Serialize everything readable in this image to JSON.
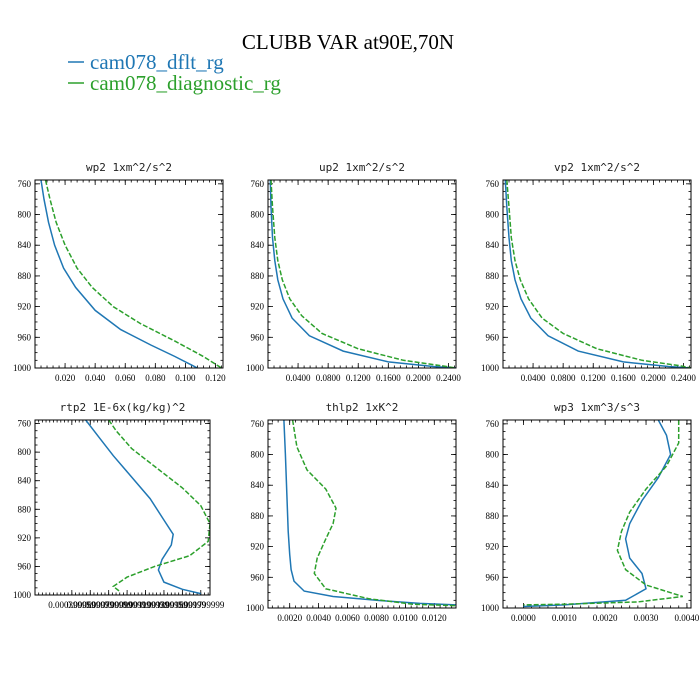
{
  "figure": {
    "title": "CLUBB VAR at90E,70N"
  },
  "legend": [
    {
      "label": "cam078_dflt_rg",
      "color": "#1f77b4"
    },
    {
      "label": "cam078_diagnostic_rg",
      "color": "#2ca02c"
    }
  ],
  "chart_data": [
    {
      "type": "line",
      "title": "wp2   1xm^2/s^2",
      "ylim": [
        1000,
        755
      ],
      "yticks": [
        760,
        800,
        840,
        880,
        920,
        960,
        1000
      ],
      "xlim": [
        0.0,
        0.125
      ],
      "xticks": [
        0.02,
        0.04,
        0.06,
        0.08,
        0.1,
        0.12
      ],
      "xtick_labels": [
        "0.020",
        "0.040",
        "0.060",
        "0.080",
        "0.100",
        "0.120"
      ],
      "series": [
        {
          "name": "cam078_dflt_rg",
          "points": [
            [
              0.004,
              755
            ],
            [
              0.006,
              780
            ],
            [
              0.009,
              810
            ],
            [
              0.013,
              840
            ],
            [
              0.019,
              870
            ],
            [
              0.027,
              895
            ],
            [
              0.04,
              925
            ],
            [
              0.057,
              950
            ],
            [
              0.077,
              970
            ],
            [
              0.093,
              985
            ],
            [
              0.104,
              996
            ],
            [
              0.108,
              1000
            ]
          ]
        },
        {
          "name": "cam078_diagnostic_rg",
          "points": [
            [
              0.007,
              755
            ],
            [
              0.01,
              780
            ],
            [
              0.014,
              810
            ],
            [
              0.02,
              840
            ],
            [
              0.028,
              870
            ],
            [
              0.038,
              895
            ],
            [
              0.052,
              920
            ],
            [
              0.07,
              942
            ],
            [
              0.093,
              965
            ],
            [
              0.112,
              985
            ],
            [
              0.124,
              1000
            ]
          ]
        }
      ]
    },
    {
      "type": "line",
      "title": "up2   1xm^2/s^2",
      "ylim": [
        1000,
        755
      ],
      "yticks": [
        760,
        800,
        840,
        880,
        920,
        960,
        1000
      ],
      "xlim": [
        0.0,
        0.25
      ],
      "xticks": [
        0.04,
        0.08,
        0.12,
        0.16,
        0.2,
        0.24
      ],
      "xtick_labels": [
        "0.0400",
        "0.0800",
        "0.1200",
        "0.1600",
        "0.2000",
        "0.2400"
      ],
      "series": [
        {
          "name": "cam078_dflt_rg",
          "points": [
            [
              0.003,
              755
            ],
            [
              0.004,
              790
            ],
            [
              0.006,
              830
            ],
            [
              0.009,
              860
            ],
            [
              0.013,
              885
            ],
            [
              0.02,
              910
            ],
            [
              0.032,
              935
            ],
            [
              0.055,
              958
            ],
            [
              0.1,
              978
            ],
            [
              0.16,
              992
            ],
            [
              0.22,
              998
            ],
            [
              0.25,
              1000
            ]
          ]
        },
        {
          "name": "cam078_diagnostic_rg",
          "points": [
            [
              0.004,
              755
            ],
            [
              0.006,
              790
            ],
            [
              0.009,
              830
            ],
            [
              0.013,
              860
            ],
            [
              0.019,
              885
            ],
            [
              0.029,
              910
            ],
            [
              0.045,
              932
            ],
            [
              0.072,
              955
            ],
            [
              0.12,
              975
            ],
            [
              0.18,
              990
            ],
            [
              0.23,
              997
            ],
            [
              0.25,
              1000
            ]
          ]
        }
      ]
    },
    {
      "type": "line",
      "title": "vp2   1xm^2/s^2",
      "ylim": [
        1000,
        755
      ],
      "yticks": [
        760,
        800,
        840,
        880,
        920,
        960,
        1000
      ],
      "xlim": [
        0.0,
        0.25
      ],
      "xticks": [
        0.04,
        0.08,
        0.12,
        0.16,
        0.2,
        0.24
      ],
      "xtick_labels": [
        "0.0400",
        "0.0800",
        "0.1200",
        "0.1600",
        "0.2000",
        "0.2400"
      ],
      "series": [
        {
          "name": "cam078_dflt_rg",
          "points": [
            [
              0.003,
              755
            ],
            [
              0.005,
              790
            ],
            [
              0.008,
              830
            ],
            [
              0.011,
              860
            ],
            [
              0.016,
              885
            ],
            [
              0.024,
              910
            ],
            [
              0.037,
              935
            ],
            [
              0.06,
              958
            ],
            [
              0.1,
              978
            ],
            [
              0.16,
              992
            ],
            [
              0.22,
              998
            ],
            [
              0.25,
              1000
            ]
          ]
        },
        {
          "name": "cam078_diagnostic_rg",
          "points": [
            [
              0.005,
              755
            ],
            [
              0.008,
              790
            ],
            [
              0.011,
              830
            ],
            [
              0.016,
              860
            ],
            [
              0.023,
              885
            ],
            [
              0.034,
              910
            ],
            [
              0.052,
              935
            ],
            [
              0.08,
              955
            ],
            [
              0.125,
              975
            ],
            [
              0.185,
              990
            ],
            [
              0.235,
              997
            ],
            [
              0.25,
              1000
            ]
          ]
        }
      ]
    },
    {
      "type": "line",
      "title": "rtp2   1E-6x(kg/kg)^2",
      "ylim": [
        1000,
        755
      ],
      "yticks": [
        760,
        800,
        840,
        880,
        920,
        960,
        1000
      ],
      "xlim": [
        0.0,
        0.0019
      ],
      "xticks": [
        0.0004,
        0.0006,
        0.0008,
        0.001,
        0.0012,
        0.0014,
        0.0016,
        0.0018
      ],
      "xtick_labels": [
        "0.000399999",
        "0.000599999",
        "0.000799999",
        "0.000999999",
        "0.001199999",
        "0.001399999",
        "0.001599999",
        "0.001799999"
      ],
      "series": [
        {
          "name": "cam078_dflt_rg",
          "points": [
            [
              0.00055,
              755
            ],
            [
              0.0007,
              780
            ],
            [
              0.00085,
              805
            ],
            [
              0.00105,
              835
            ],
            [
              0.00125,
              865
            ],
            [
              0.0014,
              895
            ],
            [
              0.0015,
              915
            ],
            [
              0.00148,
              930
            ],
            [
              0.00138,
              950
            ],
            [
              0.00134,
              965
            ],
            [
              0.0014,
              982
            ],
            [
              0.0016,
              992
            ],
            [
              0.0018,
              998
            ]
          ]
        },
        {
          "name": "cam078_diagnostic_rg",
          "points": [
            [
              0.0008,
              755
            ],
            [
              0.00088,
              770
            ],
            [
              0.00105,
              795
            ],
            [
              0.00135,
              825
            ],
            [
              0.0016,
              850
            ],
            [
              0.0018,
              875
            ],
            [
              0.0019,
              900
            ],
            [
              0.00188,
              925
            ],
            [
              0.00168,
              945
            ],
            [
              0.0013,
              960
            ],
            [
              0.001,
              975
            ],
            [
              0.00085,
              988
            ],
            [
              0.00092,
              995
            ]
          ]
        }
      ]
    },
    {
      "type": "line",
      "title": "thlp2   1xK^2",
      "ylim": [
        1000,
        755
      ],
      "yticks": [
        760,
        800,
        840,
        880,
        920,
        960,
        1000
      ],
      "xlim": [
        0.0005,
        0.0135
      ],
      "xticks": [
        0.002,
        0.004,
        0.006,
        0.008,
        0.01,
        0.012
      ],
      "xtick_labels": [
        "0.0020",
        "0.0040",
        "0.0060",
        "0.0080",
        "0.0100",
        "0.0120"
      ],
      "series": [
        {
          "name": "cam078_dflt_rg",
          "points": [
            [
              0.0016,
              755
            ],
            [
              0.0017,
              800
            ],
            [
              0.0018,
              850
            ],
            [
              0.0019,
              900
            ],
            [
              0.002,
              930
            ],
            [
              0.0021,
              950
            ],
            [
              0.0023,
              965
            ],
            [
              0.003,
              978
            ],
            [
              0.005,
              985
            ],
            [
              0.008,
              990
            ],
            [
              0.011,
              994
            ],
            [
              0.0135,
              996
            ]
          ]
        },
        {
          "name": "cam078_diagnostic_rg",
          "points": [
            [
              0.0022,
              755
            ],
            [
              0.0025,
              790
            ],
            [
              0.0032,
              820
            ],
            [
              0.0045,
              845
            ],
            [
              0.0052,
              870
            ],
            [
              0.005,
              890
            ],
            [
              0.0045,
              910
            ],
            [
              0.0039,
              935
            ],
            [
              0.0037,
              955
            ],
            [
              0.0045,
              975
            ],
            [
              0.0075,
              988
            ],
            [
              0.0105,
              995
            ],
            [
              0.0135,
              997
            ]
          ]
        }
      ]
    },
    {
      "type": "line",
      "title": "wp3   1xm^3/s^3",
      "ylim": [
        1000,
        755
      ],
      "yticks": [
        760,
        800,
        840,
        880,
        920,
        960,
        1000
      ],
      "xlim": [
        -0.0005,
        0.0041
      ],
      "xticks": [
        0.0,
        0.001,
        0.002,
        0.003,
        0.004
      ],
      "xtick_labels": [
        "0.0000",
        "0.0010",
        "0.0020",
        "0.0030",
        "0.0040"
      ],
      "series": [
        {
          "name": "cam078_dflt_rg",
          "points": [
            [
              0.0033,
              755
            ],
            [
              0.0035,
              775
            ],
            [
              0.0036,
              800
            ],
            [
              0.0033,
              830
            ],
            [
              0.0029,
              860
            ],
            [
              0.0026,
              890
            ],
            [
              0.0025,
              910
            ],
            [
              0.0026,
              935
            ],
            [
              0.0029,
              955
            ],
            [
              0.003,
              975
            ],
            [
              0.0025,
              990
            ],
            [
              0.001,
              996
            ],
            [
              0.0,
              998
            ]
          ]
        },
        {
          "name": "cam078_diagnostic_rg",
          "points": [
            [
              0.0038,
              755
            ],
            [
              0.0038,
              785
            ],
            [
              0.0035,
              815
            ],
            [
              0.003,
              845
            ],
            [
              0.0026,
              875
            ],
            [
              0.0024,
              900
            ],
            [
              0.0023,
              925
            ],
            [
              0.0025,
              950
            ],
            [
              0.003,
              970
            ],
            [
              0.0039,
              985
            ],
            [
              0.0028,
              992
            ],
            [
              0.001,
              995
            ],
            [
              0.0,
              996
            ]
          ]
        }
      ]
    }
  ]
}
